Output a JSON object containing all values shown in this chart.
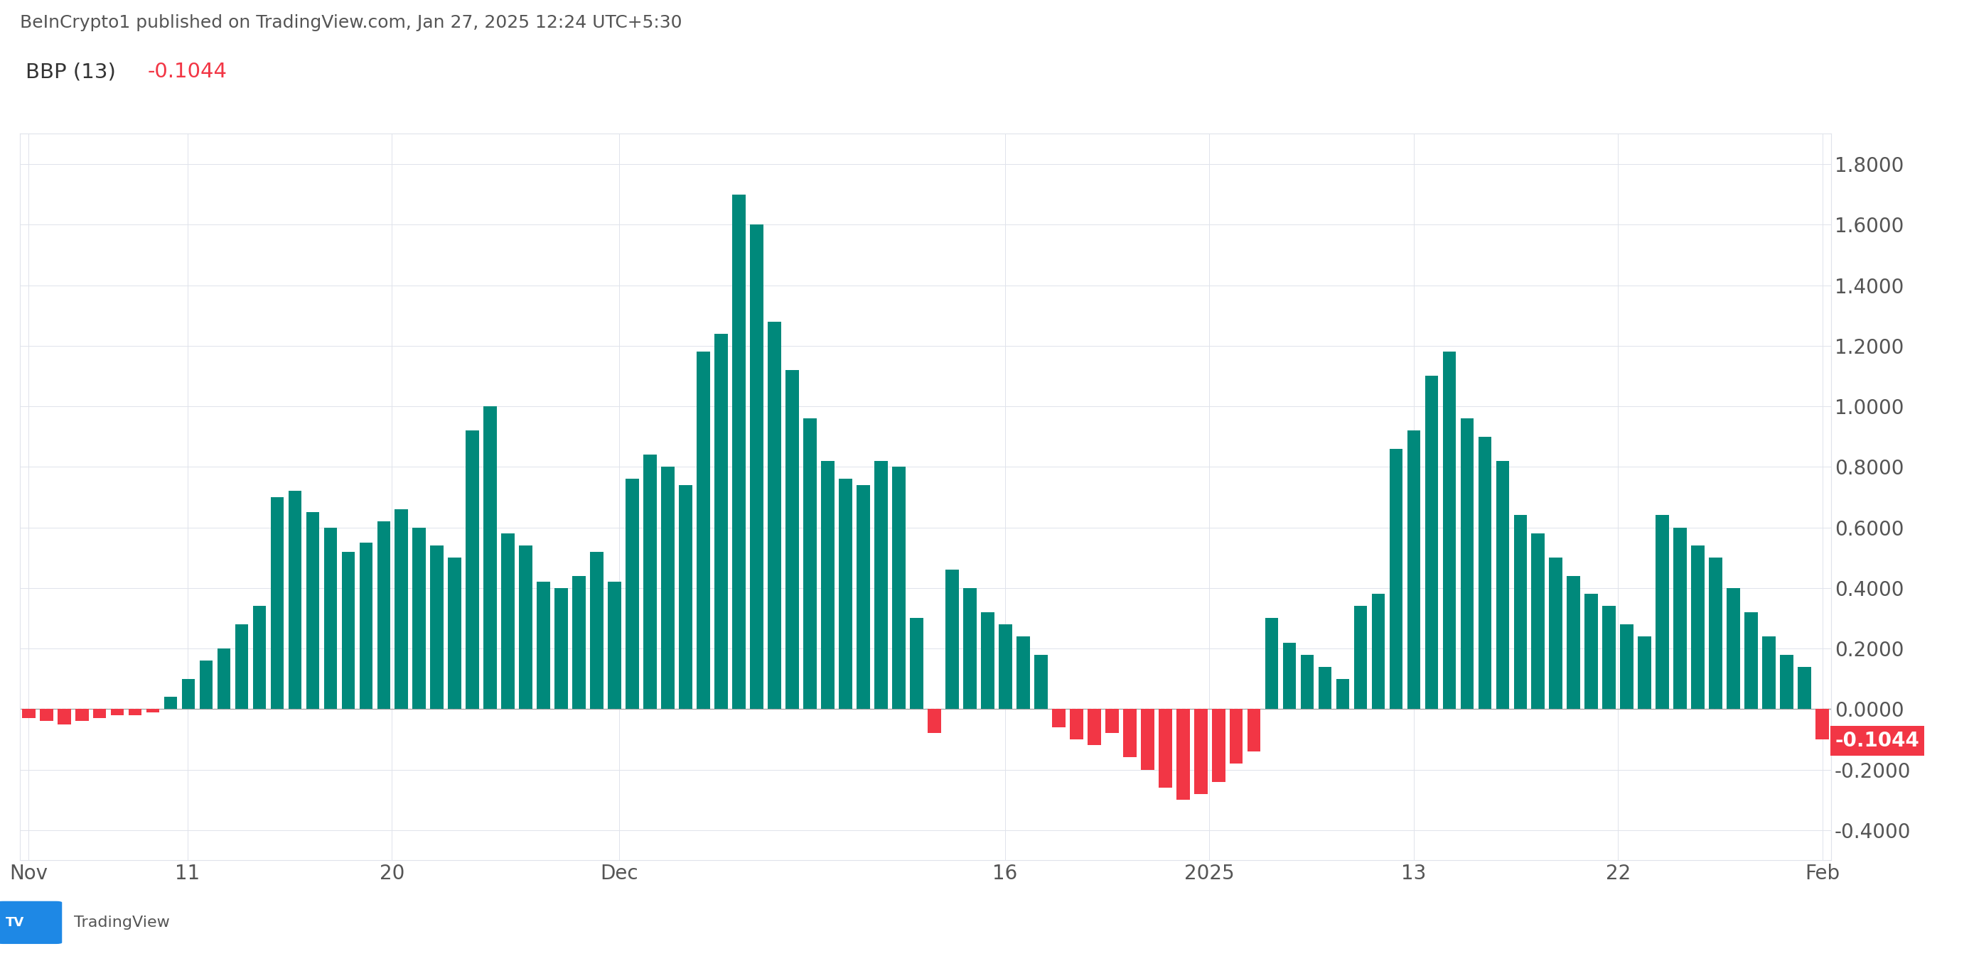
{
  "title": "BeInCrypto1 published on TradingView.com, Jan 27, 2025 12:24 UTC+5:30",
  "indicator_label": "BBP (13)",
  "indicator_value": "-0.1044",
  "bar_color_positive": "#00897B",
  "bar_color_negative": "#F23645",
  "background_color": "#ffffff",
  "plot_bg_color": "#ffffff",
  "grid_color": "#e0e3eb",
  "text_color": "#555555",
  "title_color": "#555555",
  "label_color": "#555555",
  "value_color_negative": "#F23645",
  "current_value_label_bg": "#F23645",
  "current_value_label_text": "#ffffff",
  "zero_line_color": "#999999",
  "dashed_line_color": "#aaaaaa",
  "ylim": [
    -0.5,
    1.9
  ],
  "yticks": [
    -0.4,
    -0.2,
    0.0,
    0.2,
    0.4,
    0.6,
    0.8,
    1.0,
    1.2,
    1.4,
    1.6,
    1.8
  ],
  "current_value": -0.1044,
  "x_tick_labels": [
    "Nov",
    "11",
    "20",
    "Dec",
    "16",
    "2025",
    "13",
    "22",
    "Feb"
  ],
  "values": [
    -0.03,
    -0.04,
    -0.05,
    -0.04,
    -0.03,
    -0.02,
    -0.02,
    -0.01,
    0.04,
    0.1,
    0.16,
    0.2,
    0.28,
    0.34,
    0.7,
    0.72,
    0.65,
    0.6,
    0.52,
    0.55,
    0.62,
    0.66,
    0.6,
    0.54,
    0.5,
    0.92,
    1.0,
    0.58,
    0.54,
    0.42,
    0.4,
    0.44,
    0.52,
    0.42,
    0.76,
    0.84,
    0.8,
    0.74,
    1.18,
    1.24,
    1.7,
    1.6,
    1.28,
    1.12,
    0.96,
    0.82,
    0.76,
    0.74,
    0.82,
    0.8,
    0.3,
    -0.08,
    0.46,
    0.4,
    0.32,
    0.28,
    0.24,
    0.18,
    -0.06,
    -0.1,
    -0.12,
    -0.08,
    -0.16,
    -0.2,
    -0.26,
    -0.3,
    -0.28,
    -0.24,
    -0.18,
    -0.14,
    0.3,
    0.22,
    0.18,
    0.14,
    0.1,
    0.34,
    0.38,
    0.86,
    0.92,
    1.1,
    1.18,
    0.96,
    0.9,
    0.82,
    0.64,
    0.58,
    0.5,
    0.44,
    0.38,
    0.34,
    0.28,
    0.24,
    0.64,
    0.6,
    0.54,
    0.5,
    0.4,
    0.32,
    0.24,
    0.18,
    0.14,
    -0.1
  ]
}
